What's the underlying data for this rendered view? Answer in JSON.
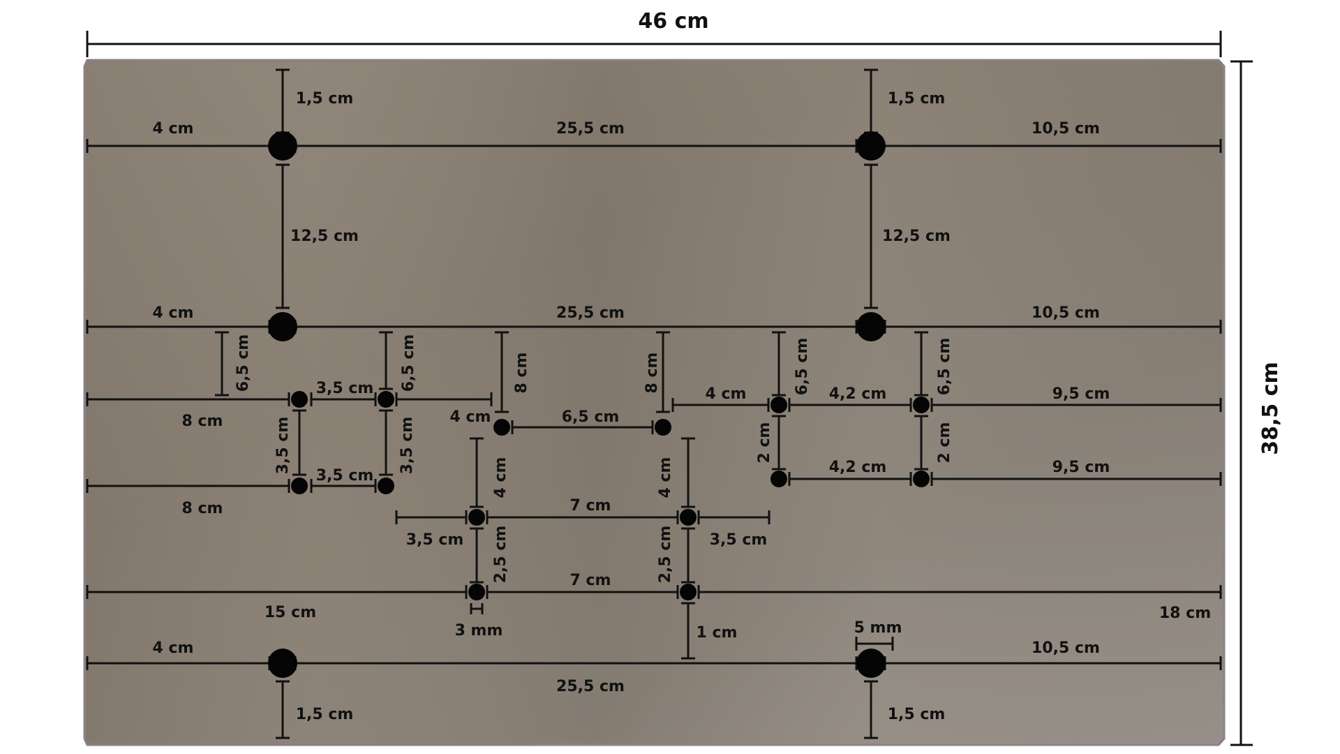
{
  "overall": {
    "width_label": "46 cm",
    "height_label": "38,5 cm"
  },
  "holes": [
    {
      "id": "h1"
    },
    {
      "id": "h2"
    },
    {
      "id": "h3"
    },
    {
      "id": "h4"
    },
    {
      "id": "h5"
    },
    {
      "id": "h6"
    },
    {
      "id": "h7"
    },
    {
      "id": "h8"
    },
    {
      "id": "h9"
    },
    {
      "id": "h10"
    },
    {
      "id": "h11"
    },
    {
      "id": "h12"
    },
    {
      "id": "h13"
    },
    {
      "id": "h14"
    },
    {
      "id": "h15"
    },
    {
      "id": "h16"
    },
    {
      "id": "h17"
    },
    {
      "id": "h18"
    },
    {
      "id": "h19"
    },
    {
      "id": "h20"
    }
  ],
  "labels": {
    "l01": "1,5 cm",
    "l02": "1,5 cm",
    "l03": "4 cm",
    "l04": "25,5 cm",
    "l05": "10,5 cm",
    "l06": "12,5 cm",
    "l07": "12,5 cm",
    "l08": "4 cm",
    "l09": "25,5 cm",
    "l10": "10,5 cm",
    "l11": "6,5 cm",
    "l12": "3,5 cm",
    "l13": "6,5 cm",
    "l14": "8 cm",
    "l15": "8 cm",
    "l16": "4 cm",
    "l17": "6,5 cm",
    "l18": "4 cm",
    "l19": "6,5 cm",
    "l20": "4,2 cm",
    "l21": "6,5 cm",
    "l22": "9,5 cm",
    "l23": "8 cm",
    "l24": "3,5 cm",
    "l25": "3,5 cm",
    "l26": "2 cm",
    "l27": "2 cm",
    "l28": "3,5 cm",
    "l29": "4,2 cm",
    "l30": "9,5 cm",
    "l31": "4 cm",
    "l32": "4 cm",
    "l33": "8 cm",
    "l34": "7 cm",
    "l35": "3,5 cm",
    "l36": "3,5 cm",
    "l37": "2,5 cm",
    "l38": "2,5 cm",
    "l39": "7 cm",
    "l40": "15 cm",
    "l41": "18 cm",
    "l42": "3 mm",
    "l43": "1 cm",
    "l44": "5 mm",
    "l45": "4 cm",
    "l46": "10,5 cm",
    "l47": "25,5 cm",
    "l48": "1,5 cm",
    "l49": "1,5 cm"
  }
}
